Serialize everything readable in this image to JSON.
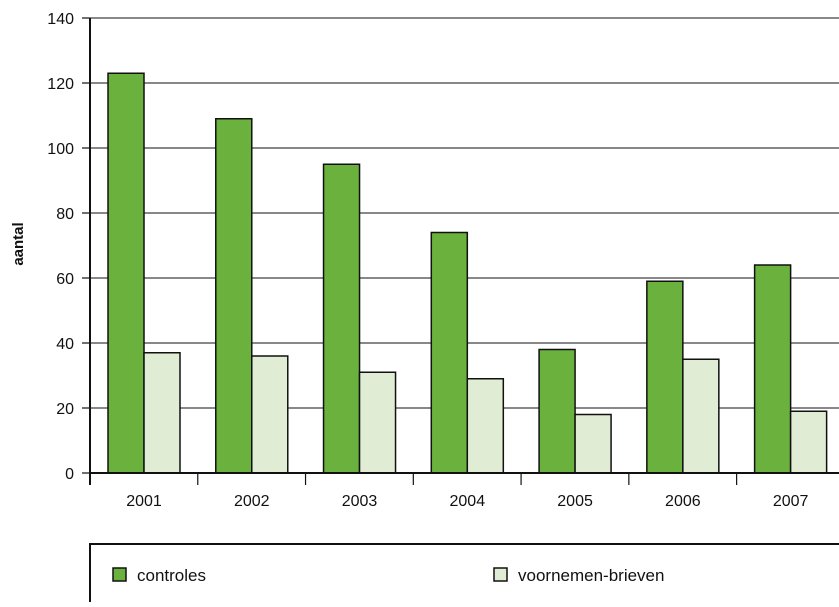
{
  "chart_data": {
    "type": "bar",
    "ylabel": "aantal",
    "xlabel": "",
    "ylim": [
      0,
      140
    ],
    "yticks": [
      0,
      20,
      40,
      60,
      80,
      100,
      120,
      140
    ],
    "categories": [
      "2001",
      "2002",
      "2003",
      "2004",
      "2005",
      "2006",
      "2007"
    ],
    "series": [
      {
        "name": "controles",
        "values": [
          123,
          109,
          95,
          74,
          38,
          59,
          64
        ],
        "color": "#6bb13d"
      },
      {
        "name": "voornemen-brieven",
        "values": [
          37,
          36,
          31,
          29,
          18,
          35,
          19
        ],
        "color": "#e0ecd4"
      }
    ],
    "grid": true,
    "legend_position": "bottom",
    "colors": {
      "axis": "#111111",
      "grid": "#111111",
      "bar_stroke": "#111111"
    }
  }
}
